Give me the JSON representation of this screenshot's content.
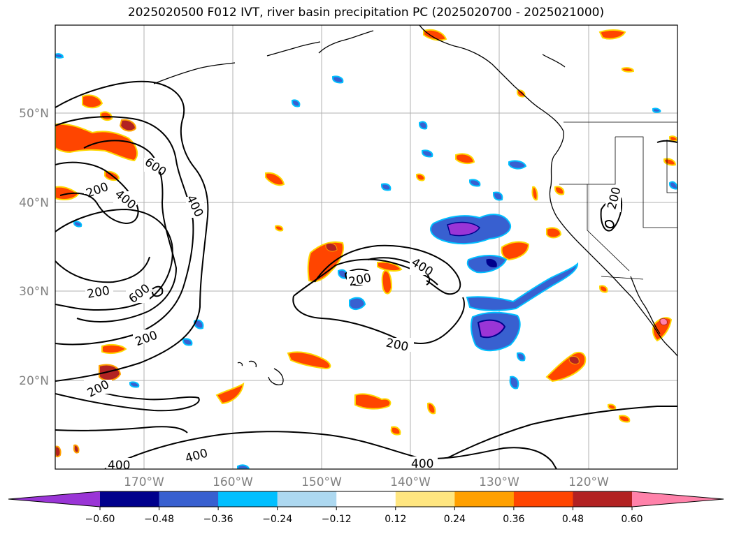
{
  "title": "2025020500 F012 IVT, river basin precipitation PC (2025020700 - 2025021000)",
  "lat_labels": [
    "50°N",
    "40°N",
    "30°N",
    "20°N"
  ],
  "lon_labels": [
    "170°W",
    "160°W",
    "150°W",
    "140°W",
    "130°W",
    "120°W"
  ],
  "contour_labels": [
    "600",
    "200",
    "400",
    "400",
    "200",
    "600",
    "200",
    "200",
    "200",
    "200",
    "400",
    "200",
    "400",
    "400"
  ],
  "colorbar": {
    "ticks": [
      "−0.60",
      "−0.48",
      "−0.36",
      "−0.24",
      "−0.12",
      "0.12",
      "0.24",
      "0.36",
      "0.48",
      "0.60"
    ],
    "colors": [
      "#9a35d6",
      "#00008c",
      "#3860d0",
      "#00bfff",
      "#add8f0",
      "#ffffff",
      "#ffe680",
      "#ffa000",
      "#ff4500",
      "#b22222",
      "#ff82aa"
    ]
  },
  "colors": {
    "contour": "#000000",
    "coast": "#000000",
    "grid": "#b0b0b0",
    "axis_label": "#808080"
  }
}
